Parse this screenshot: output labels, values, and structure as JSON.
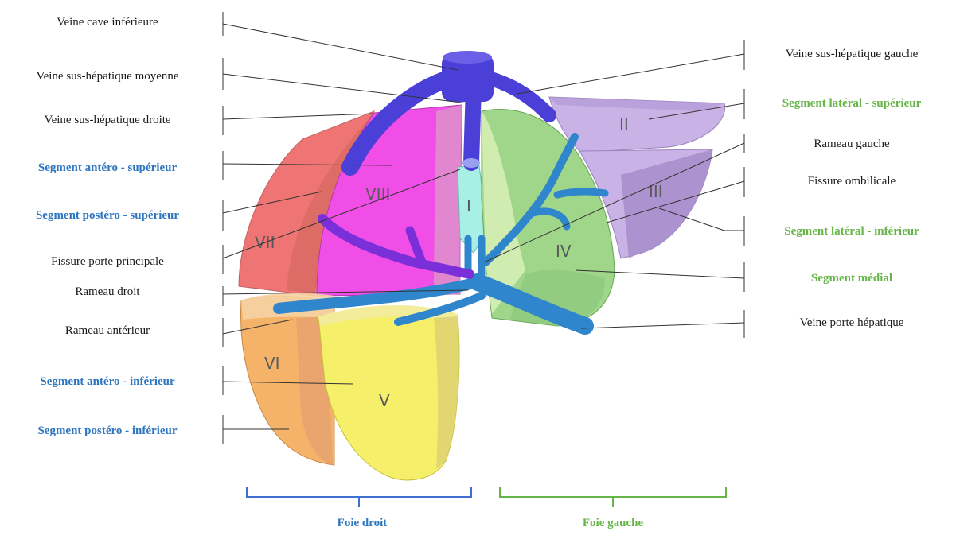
{
  "labels_left": [
    {
      "text": "Veine cave inférieure",
      "style": "black"
    },
    {
      "text": "Veine sus-hépatique moyenne",
      "style": "black"
    },
    {
      "text": "Veine sus-hépatique droite",
      "style": "black"
    },
    {
      "text": "Segment antéro - supérieur",
      "style": "blue"
    },
    {
      "text": "Segment postéro - supérieur",
      "style": "blue"
    },
    {
      "text": "Fissure porte principale",
      "style": "black"
    },
    {
      "text": "Rameau droit",
      "style": "black"
    },
    {
      "text": "Rameau antérieur",
      "style": "black"
    },
    {
      "text": "Segment antéro - inférieur",
      "style": "blue"
    },
    {
      "text": "Segment postéro - inférieur",
      "style": "blue"
    }
  ],
  "labels_right": [
    {
      "text": "Veine sus-hépatique gauche",
      "style": "black"
    },
    {
      "text": "Segment latéral - supérieur",
      "style": "green"
    },
    {
      "text": "Rameau gauche",
      "style": "black"
    },
    {
      "text": "Fissure ombilicale",
      "style": "black"
    },
    {
      "text": "Segment latéral - inférieur",
      "style": "green"
    },
    {
      "text": "Segment médial",
      "style": "green"
    },
    {
      "text": "Veine porte hépatique",
      "style": "black"
    }
  ],
  "segments": {
    "I": "I",
    "II": "II",
    "III": "III",
    "IV": "IV",
    "V": "V",
    "VI": "VI",
    "VII": "VII",
    "VIII": "VIII"
  },
  "footer": {
    "right_liver": "Foie droit",
    "left_liver": "Foie gauche"
  },
  "colors": {
    "blue_label": "#2e76c0",
    "green_label": "#66b548",
    "vein": "#4a3fd6",
    "portal": "#2f86cc",
    "seg_I": "#a8efe6",
    "seg_II_III": "#c9b3e6",
    "seg_IV": "#9fd68a",
    "seg_V": "#f6ef6a",
    "seg_VI": "#f5b36a",
    "seg_VII": "#ef7575",
    "seg_VIII": "#f04ee6"
  }
}
